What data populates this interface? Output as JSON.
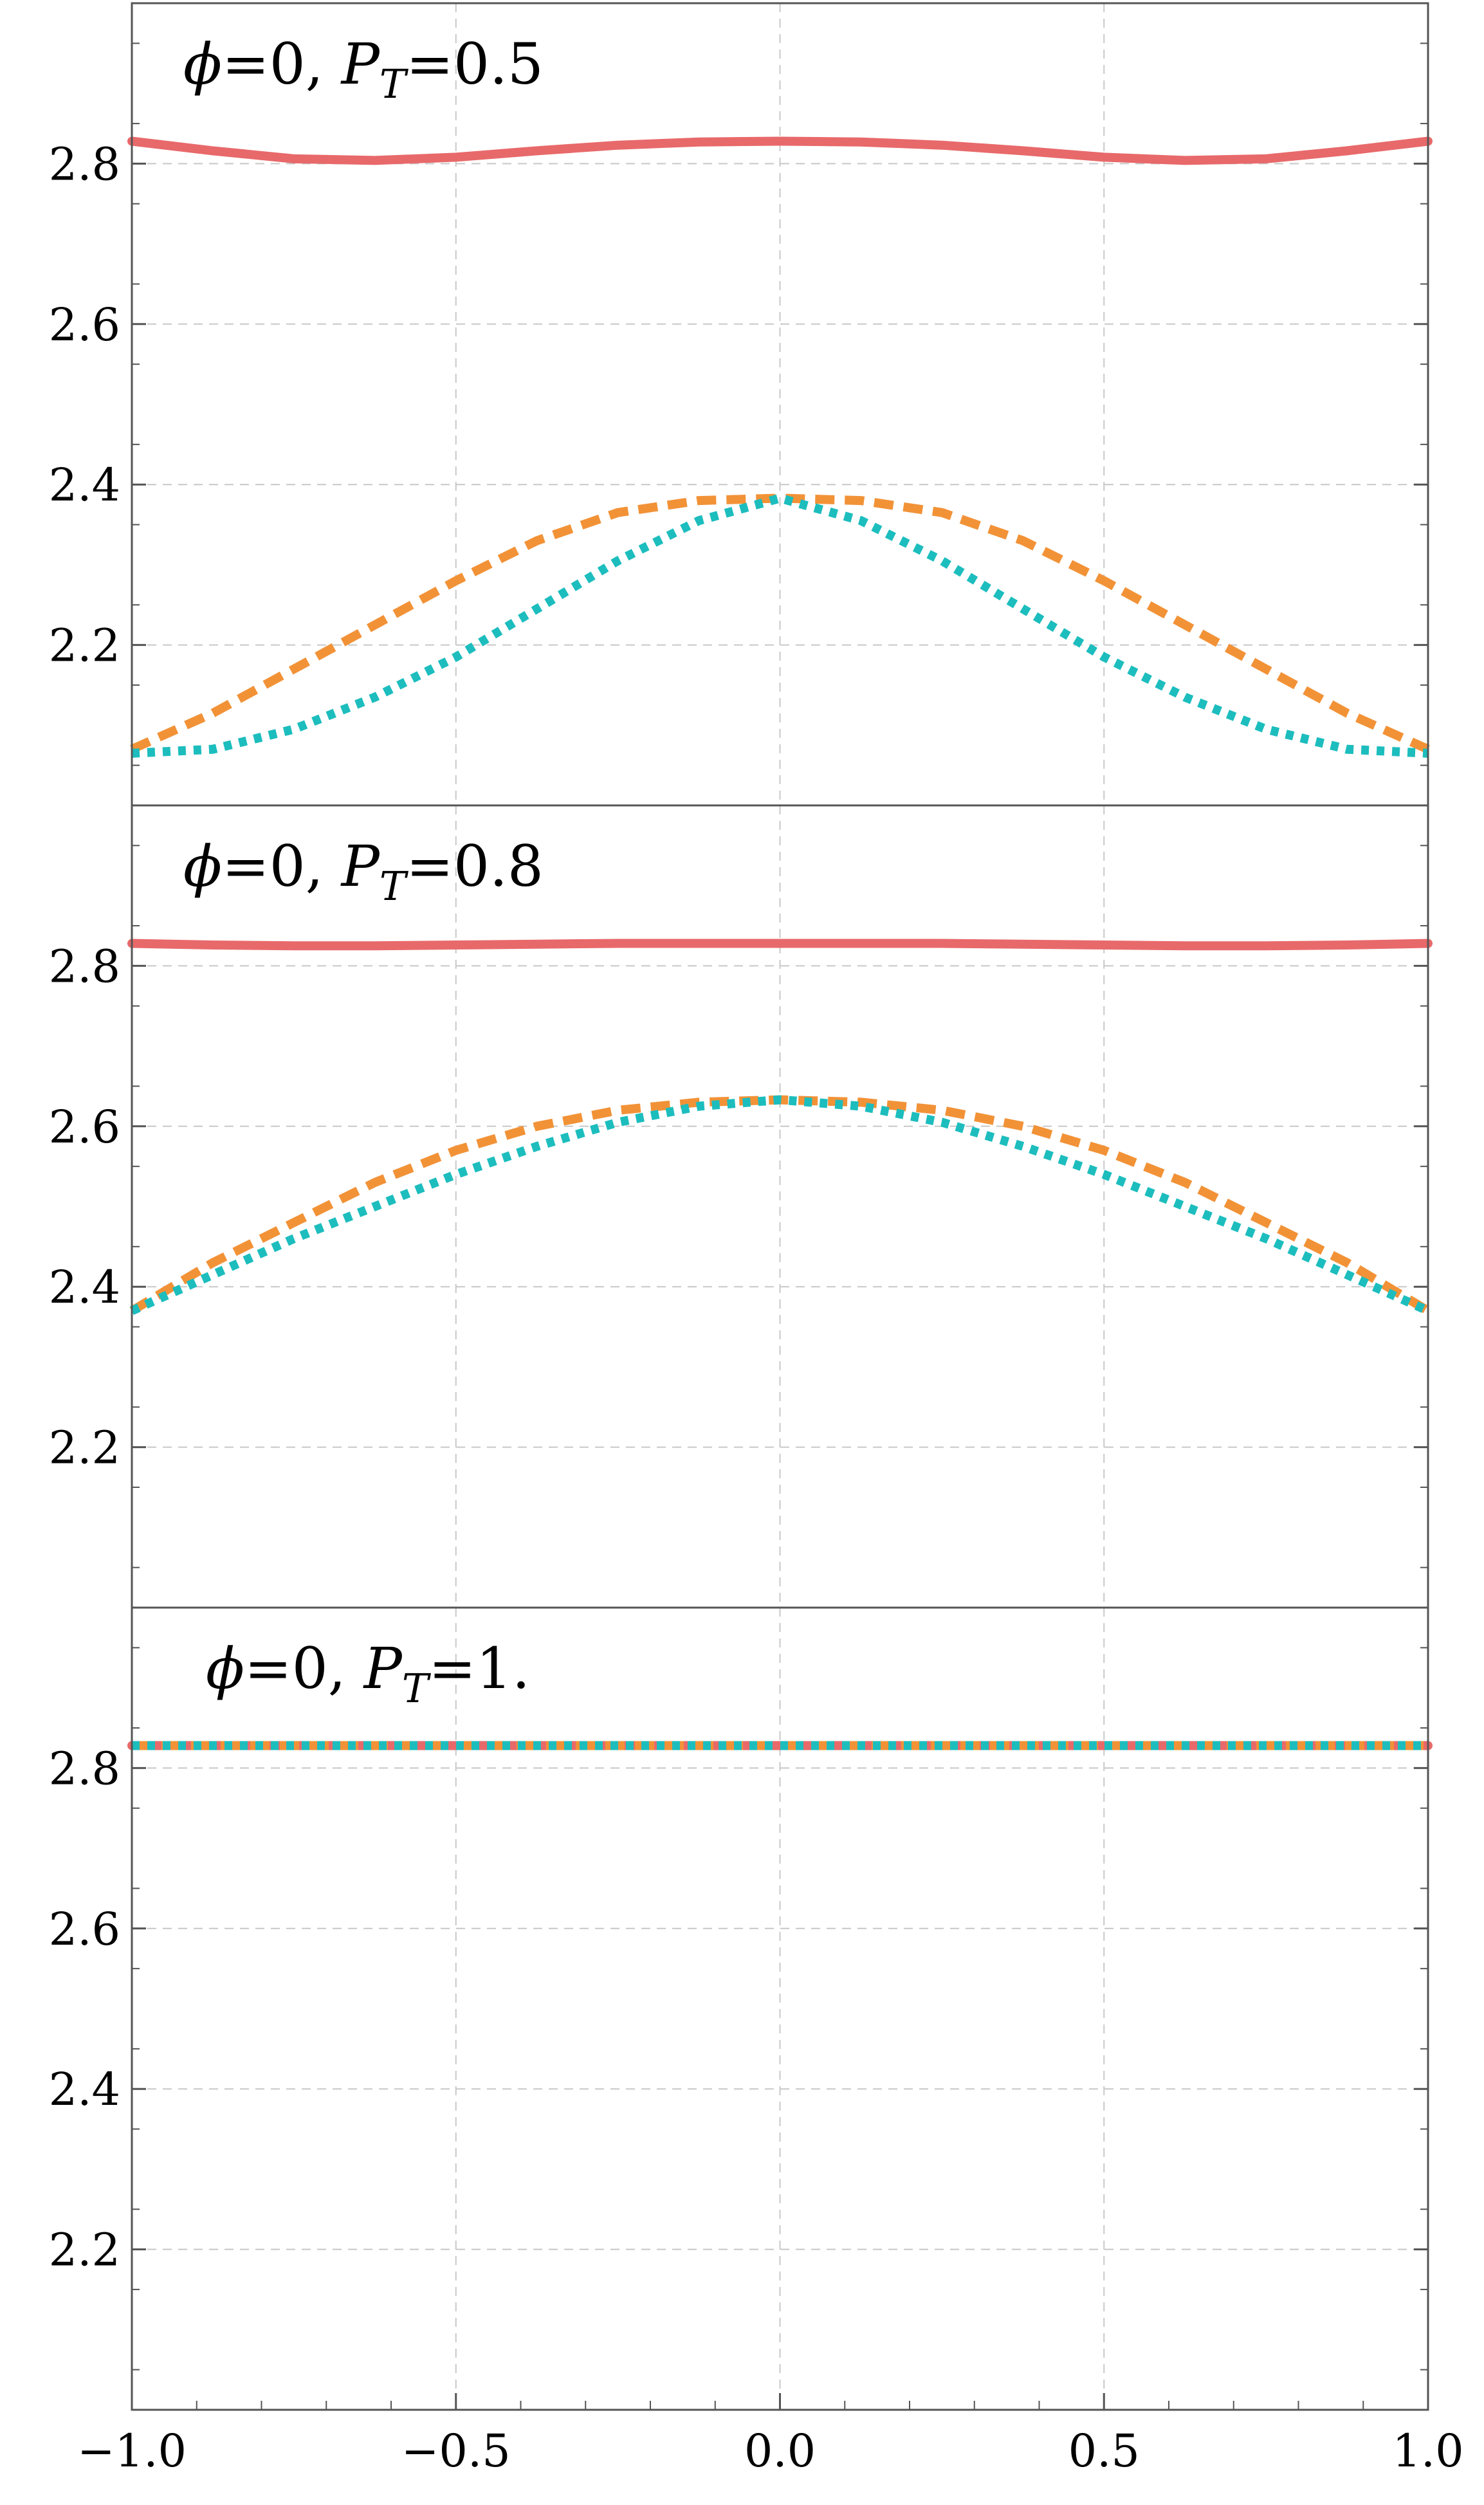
{
  "colors": {
    "series_solid": "#E8696A",
    "series_dashed": "#F29237",
    "series_dotted": "#1DBDBE",
    "grid": "#C8C8C8",
    "frame": "#555555"
  },
  "chart_data": [
    {
      "type": "line",
      "title": {
        "prefix": "ϕ",
        "rest": "=0, ",
        "var": "P",
        "sub": "T",
        "value": "=0.5"
      },
      "xlim": [
        -1.0,
        1.0
      ],
      "ylim": [
        2.0,
        3.0
      ],
      "x_ticks": [
        -1.0,
        -0.5,
        0.0,
        0.5,
        1.0
      ],
      "y_ticks": [
        2.2,
        2.4,
        2.6,
        2.8
      ],
      "y_tick_labels": [
        "2.2",
        "2.4",
        "2.6",
        "2.8"
      ],
      "grid": true,
      "x": [
        -1.0,
        -0.875,
        -0.75,
        -0.625,
        -0.5,
        -0.375,
        -0.25,
        -0.125,
        0.0,
        0.125,
        0.25,
        0.375,
        0.5,
        0.625,
        0.75,
        0.875,
        1.0
      ],
      "series": [
        {
          "style": "solid",
          "values": [
            2.828,
            2.816,
            2.806,
            2.804,
            2.808,
            2.816,
            2.823,
            2.827,
            2.828,
            2.827,
            2.823,
            2.816,
            2.808,
            2.804,
            2.806,
            2.816,
            2.828
          ]
        },
        {
          "style": "dashed",
          "values": [
            2.07,
            2.115,
            2.17,
            2.225,
            2.28,
            2.33,
            2.365,
            2.38,
            2.383,
            2.38,
            2.365,
            2.33,
            2.28,
            2.225,
            2.17,
            2.115,
            2.07
          ]
        },
        {
          "style": "dotted",
          "values": [
            2.065,
            2.07,
            2.095,
            2.135,
            2.185,
            2.245,
            2.305,
            2.355,
            2.383,
            2.355,
            2.305,
            2.245,
            2.185,
            2.135,
            2.095,
            2.07,
            2.065
          ]
        }
      ]
    },
    {
      "type": "line",
      "title": {
        "prefix": "ϕ",
        "rest": "=0, ",
        "var": "P",
        "sub": "T",
        "value": "=0.8"
      },
      "xlim": [
        -1.0,
        1.0
      ],
      "ylim": [
        2.0,
        3.0
      ],
      "x_ticks": [
        -1.0,
        -0.5,
        0.0,
        0.5,
        1.0
      ],
      "y_ticks": [
        2.2,
        2.4,
        2.6,
        2.8
      ],
      "y_tick_labels": [
        "2.2",
        "2.4",
        "2.6",
        "2.8"
      ],
      "grid": true,
      "x": [
        -1.0,
        -0.875,
        -0.75,
        -0.625,
        -0.5,
        -0.375,
        -0.25,
        -0.125,
        0.0,
        0.125,
        0.25,
        0.375,
        0.5,
        0.625,
        0.75,
        0.875,
        1.0
      ],
      "series": [
        {
          "style": "solid",
          "values": [
            2.828,
            2.826,
            2.825,
            2.825,
            2.826,
            2.827,
            2.828,
            2.828,
            2.828,
            2.828,
            2.828,
            2.827,
            2.826,
            2.825,
            2.825,
            2.826,
            2.828
          ]
        },
        {
          "style": "dashed",
          "values": [
            2.37,
            2.43,
            2.48,
            2.53,
            2.57,
            2.6,
            2.62,
            2.63,
            2.633,
            2.63,
            2.62,
            2.6,
            2.57,
            2.53,
            2.48,
            2.43,
            2.37
          ]
        },
        {
          "style": "dotted",
          "values": [
            2.37,
            2.415,
            2.46,
            2.5,
            2.54,
            2.575,
            2.605,
            2.625,
            2.633,
            2.625,
            2.605,
            2.575,
            2.54,
            2.5,
            2.46,
            2.415,
            2.37
          ]
        }
      ]
    },
    {
      "type": "line",
      "title": {
        "prefix": "ϕ",
        "rest": "=0, ",
        "var": "P",
        "sub": "T",
        "value": "=1."
      },
      "xlim": [
        -1.0,
        1.0
      ],
      "ylim": [
        2.0,
        3.0
      ],
      "x_ticks": [
        -1.0,
        -0.5,
        0.0,
        0.5,
        1.0
      ],
      "x_tick_labels": [
        "−1.0",
        "−0.5",
        "0.0",
        "0.5",
        "1.0"
      ],
      "y_ticks": [
        2.2,
        2.4,
        2.6,
        2.8
      ],
      "y_tick_labels": [
        "2.2",
        "2.4",
        "2.6",
        "2.8"
      ],
      "grid": true,
      "x": [
        -1.0,
        -0.5,
        0.0,
        0.5,
        1.0
      ],
      "series": [
        {
          "style": "solid",
          "values": [
            2.828,
            2.828,
            2.828,
            2.828,
            2.828
          ]
        },
        {
          "style": "dashed",
          "values": [
            2.828,
            2.828,
            2.828,
            2.828,
            2.828
          ]
        },
        {
          "style": "dotted",
          "values": [
            2.828,
            2.828,
            2.828,
            2.828,
            2.828
          ]
        }
      ]
    }
  ]
}
